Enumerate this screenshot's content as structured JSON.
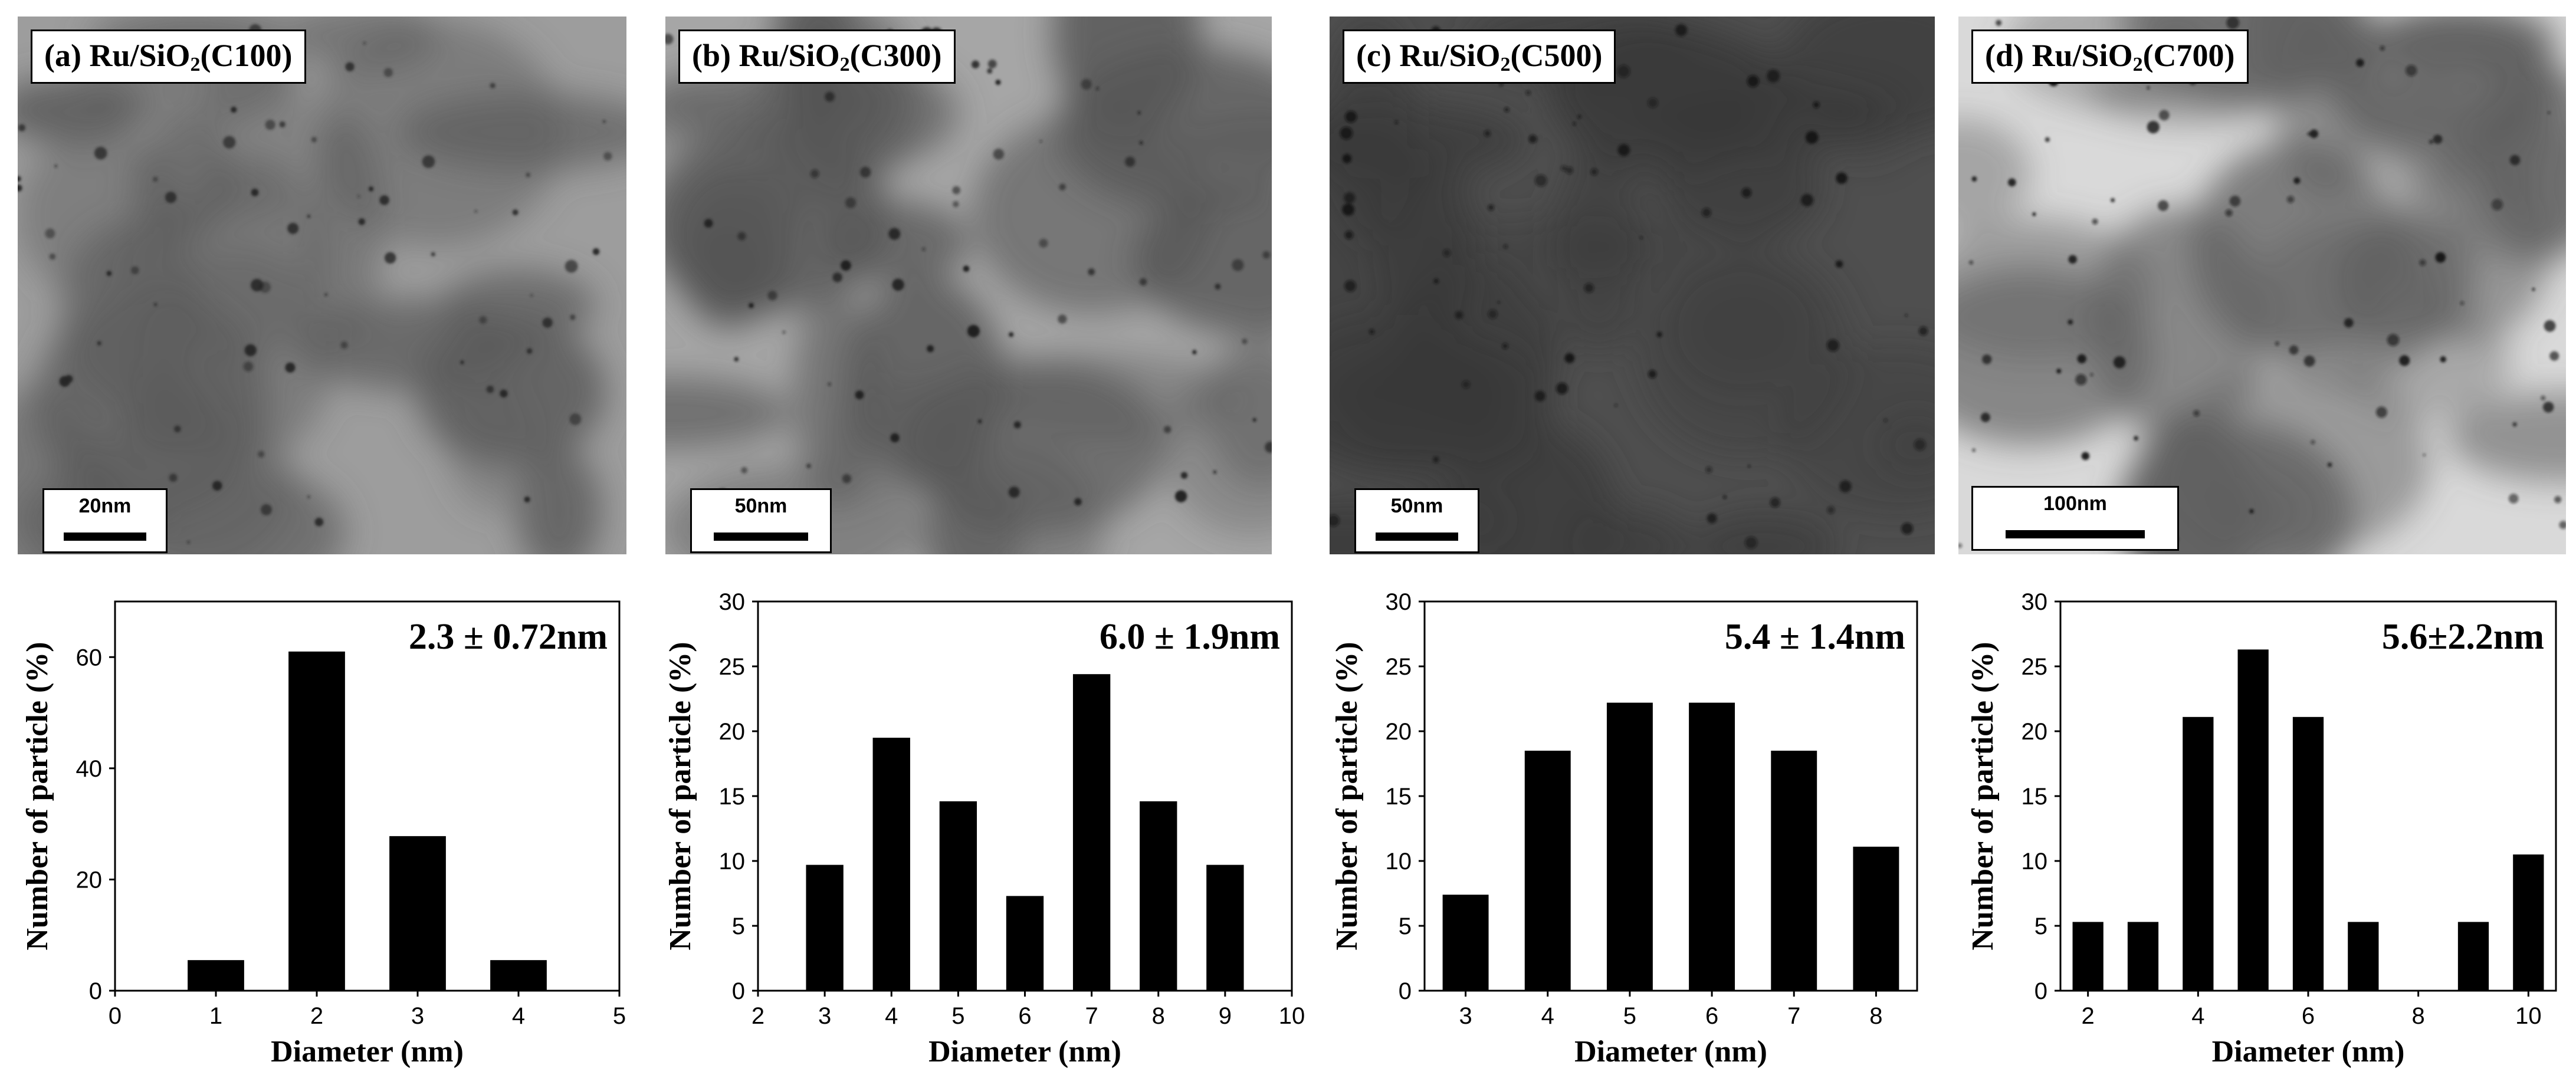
{
  "panels": [
    {
      "id": "a",
      "label_prefix": "(a) Ru/SiO",
      "label_sub": "2",
      "label_suffix": "(C100)",
      "scale_text": "20nm",
      "tone": {
        "bg": "#9d9d9d",
        "blob": "#5b5b5b",
        "dot": "#252525"
      },
      "chart_data": {
        "type": "bar",
        "x": [
          1,
          2,
          3,
          4
        ],
        "values": [
          5.5,
          61,
          27.8,
          5.5
        ],
        "xticks": [
          "0",
          "1",
          "2",
          "3",
          "4",
          "5"
        ],
        "xlim": [
          0,
          5
        ],
        "ylim": [
          0,
          70
        ],
        "yticks": [
          "0",
          "20",
          "40",
          "60"
        ],
        "xlabel": "Diameter (nm)",
        "ylabel": "Number of particle (%)",
        "annotation": "2.3 ± 0.72nm"
      }
    },
    {
      "id": "b",
      "label_prefix": "(b) Ru/SiO",
      "label_sub": "2",
      "label_suffix": "(C300)",
      "scale_text": "50nm",
      "tone": {
        "bg": "#a6a6a6",
        "blob": "#555555",
        "dot": "#1c1c1c"
      },
      "chart_data": {
        "type": "bar",
        "x": [
          3,
          4,
          5,
          6,
          7,
          8,
          9
        ],
        "values": [
          9.7,
          19.5,
          14.6,
          7.3,
          24.4,
          14.6,
          9.7
        ],
        "xticks": [
          "2",
          "3",
          "4",
          "5",
          "6",
          "7",
          "8",
          "9",
          "10"
        ],
        "xlim": [
          2,
          10
        ],
        "ylim": [
          0,
          30
        ],
        "yticks": [
          "0",
          "5",
          "10",
          "15",
          "20",
          "25",
          "30"
        ],
        "xlabel": "Diameter (nm)",
        "ylabel": "Number of particle (%)",
        "annotation": "6.0 ± 1.9nm"
      }
    },
    {
      "id": "c",
      "label_prefix": "(c) Ru/SiO",
      "label_sub": "2",
      "label_suffix": "(C500)",
      "scale_text": "50nm",
      "tone": {
        "bg": "#4f4f4f",
        "blob": "#3a3a3a",
        "dot": "#151515"
      },
      "chart_data": {
        "type": "bar",
        "x": [
          3,
          4,
          5,
          6,
          7,
          8
        ],
        "values": [
          7.4,
          18.5,
          22.2,
          22.2,
          18.5,
          11.1
        ],
        "xticks": [
          "3",
          "4",
          "5",
          "6",
          "7",
          "8"
        ],
        "xlim": [
          2.5,
          8.5
        ],
        "ylim": [
          0,
          30
        ],
        "yticks": [
          "0",
          "5",
          "10",
          "15",
          "20",
          "25",
          "30"
        ],
        "xlabel": "Diameter (nm)",
        "ylabel": "Number of particle (%)",
        "annotation": "5.4 ± 1.4nm"
      }
    },
    {
      "id": "d",
      "label_prefix": "(d) Ru/SiO",
      "label_sub": "2",
      "label_suffix": "(C700)",
      "scale_text": "100nm",
      "tone": {
        "bg": "#d9d9d9",
        "blob": "#5e5e5e",
        "dot": "#181818"
      },
      "chart_data": {
        "type": "bar",
        "x": [
          2,
          3,
          4,
          5,
          6,
          7,
          8,
          9,
          10
        ],
        "values": [
          5.3,
          5.3,
          21.1,
          26.3,
          21.1,
          5.3,
          0,
          5.3,
          10.5
        ],
        "xticks": [
          "2",
          "4",
          "6",
          "8",
          "10"
        ],
        "xtick_values": [
          2,
          4,
          6,
          8,
          10
        ],
        "xlim": [
          1.5,
          10.5
        ],
        "ylim": [
          0,
          30
        ],
        "yticks": [
          "0",
          "5",
          "10",
          "15",
          "20",
          "25",
          "30"
        ],
        "xlabel": "Diameter (nm)",
        "ylabel": "Number of particle (%)",
        "annotation": "5.6±2.2nm"
      }
    }
  ]
}
